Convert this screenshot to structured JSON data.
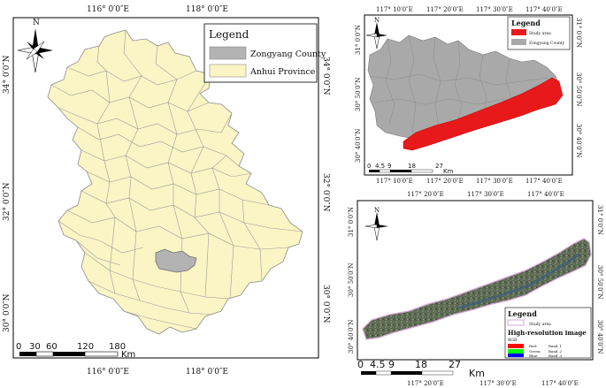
{
  "panel_a": {
    "top_ticks": [
      "116° 0′0″E",
      "118° 0′0″E"
    ],
    "bottom_ticks": [
      "116° 0′0″E",
      "118° 0′0″E"
    ],
    "left_ticks": [
      "34° 0′0″N",
      "32° 0′0″N",
      "30° 0′0″N"
    ],
    "right_ticks": [
      "34° 0′0″N",
      "32° 0′0″N",
      "30° 0′0″N"
    ],
    "north": "N",
    "legend": {
      "title": "Legend",
      "items": [
        {
          "label": "Zongyang County",
          "color": "#b3b3b3"
        },
        {
          "label": "Anhui Province",
          "color": "#fbf5c5"
        }
      ]
    },
    "scale": {
      "labels": [
        "0",
        "30",
        "60",
        "120",
        "180"
      ],
      "unit": "Km"
    }
  },
  "panel_b": {
    "top_ticks": [
      "117° 10′0″E",
      "117° 20′0″E",
      "117° 30′0″E",
      "117° 40′0″E"
    ],
    "bottom_ticks": [
      "117° 10′0″E",
      "117° 20′0″E",
      "117° 30′0″E",
      "117° 40′0″E"
    ],
    "left_ticks": [
      "31° 0′0″N",
      "30° 50′0″N",
      "30° 40′0″N"
    ],
    "right_ticks": [
      "31° 0′0″N",
      "30° 50′0″N",
      "30° 40′0″N"
    ],
    "north": "N",
    "legend": {
      "title": "Legend",
      "items": [
        {
          "label": "Study area",
          "color": "#e8191a"
        },
        {
          "label": "Zongyang County",
          "color": "#a9a9a9"
        }
      ]
    },
    "scale": {
      "labels": [
        "0",
        "4.5",
        "9",
        "18",
        "27"
      ],
      "unit": "Km"
    }
  },
  "panel_c": {
    "top_ticks": [
      "117° 20′0″E",
      "117° 30′0″E",
      "117° 40′0″E"
    ],
    "bottom_ticks": [
      "117° 20′0″E",
      "117° 30′0″E",
      "117° 40′0″E"
    ],
    "left_ticks": [
      "31° 0′0″N",
      "30° 50′0″N",
      "30° 40′0″N"
    ],
    "right_ticks": [
      "31° 0′0″N",
      "30° 50′0″N",
      "30° 40′0″N"
    ],
    "north": "N",
    "legend": {
      "title": "Legend",
      "study_area": "Study area",
      "subtitle": "High-resolution image",
      "rgb": "RGB",
      "bands": [
        {
          "channel": "Red:",
          "band": "Band_1",
          "color": "#ff0000"
        },
        {
          "channel": "Green:",
          "band": "Band_2",
          "color": "#00ff00"
        },
        {
          "channel": "Blue:",
          "band": "Band_3",
          "color": "#0000ff"
        }
      ]
    },
    "scale": {
      "labels": [
        "0",
        "4.5",
        "9",
        "18",
        "27"
      ],
      "unit": "Km"
    }
  }
}
